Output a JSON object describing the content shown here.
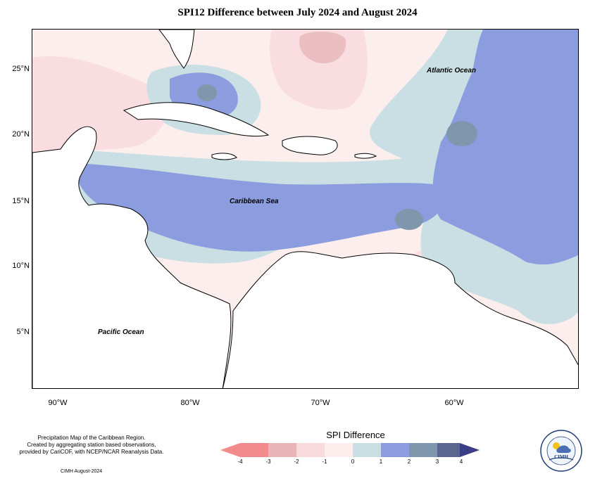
{
  "title": "SPI12 Difference between July 2024 and August 2024",
  "map": {
    "lat_labels": [
      "25°N",
      "20°N",
      "15°N",
      "10°N",
      "5°N"
    ],
    "lon_labels": [
      "90°W",
      "80°W",
      "70°W",
      "60°W"
    ],
    "places": {
      "atlantic": "Atlantic Ocean",
      "caribbean": "Caribbean Sea",
      "pacific": "Pacific Ocean"
    }
  },
  "legend": {
    "title": "SPI Difference",
    "ticks": [
      "-4",
      "-3",
      "-2",
      "-1",
      "0",
      "1",
      "2",
      "3",
      "4"
    ],
    "colors": [
      "#f28b8e",
      "#e8b4b6",
      "#f8d9dc",
      "#fdeeee",
      "#c9dfe4",
      "#8b9ddf",
      "#7f97ad",
      "#5a6590",
      "#3b3d86"
    ]
  },
  "credits": {
    "line1": "Precipitation Map of the Caribbean Region.",
    "line2": "Created by aggregating station based observations,",
    "line3": "provided by CariCOF, with NCEP/NCAR Reanalysis Data.",
    "stamp": "CIMH August-2024",
    "logo_text": "CIMH"
  }
}
